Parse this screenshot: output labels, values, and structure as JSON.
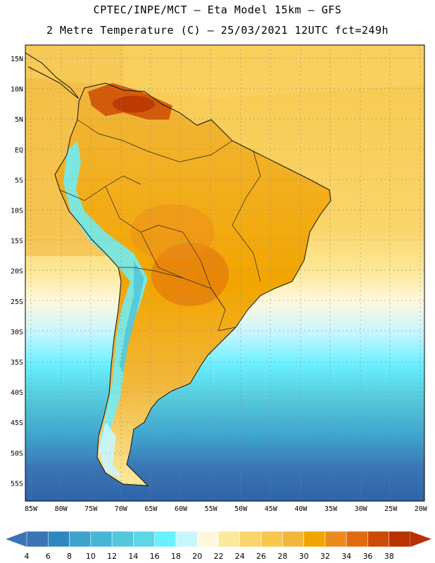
{
  "header": {
    "line1": "CPTEC/INPE/MCT –  Eta Model 15km – GFS",
    "line2": "2 Metre Temperature (C) – 25/03/2021 12UTC fct=249h"
  },
  "axes": {
    "lat_labels": [
      "15N",
      "10N",
      "5N",
      "EQ",
      "5S",
      "10S",
      "15S",
      "20S",
      "25S",
      "30S",
      "35S",
      "40S",
      "45S",
      "50S",
      "55S"
    ],
    "lon_labels": [
      "85W",
      "80W",
      "75W",
      "70W",
      "65W",
      "60W",
      "55W",
      "50W",
      "45W",
      "40W",
      "35W",
      "30W",
      "25W",
      "20W"
    ]
  },
  "colorbar": {
    "labels": [
      "4",
      "6",
      "8",
      "10",
      "12",
      "14",
      "16",
      "18",
      "20",
      "22",
      "24",
      "26",
      "28",
      "30",
      "32",
      "34",
      "36",
      "38"
    ],
    "colors": [
      "#3a74b4",
      "#2e86c0",
      "#3ea3cc",
      "#47b6d6",
      "#54c8da",
      "#5ad8e6",
      "#6af0ff",
      "#c8f6ff",
      "#fff8dc",
      "#fde99a",
      "#fbd56a",
      "#f6c84c",
      "#f1b73c",
      "#f2a500",
      "#ec8b1c",
      "#e06b0e",
      "#cc4a04",
      "#b83200"
    ],
    "low_color": "#3a74b4",
    "high_color": "#b83200"
  }
}
